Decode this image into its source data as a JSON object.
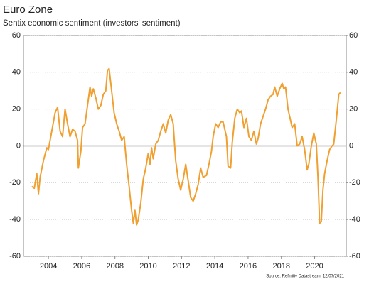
{
  "chart_data": {
    "type": "line",
    "title": "Euro Zone",
    "subtitle": "Sentix economic sentiment (investors' sentiment)",
    "source": "Source: Refinitiv Datastream, 12/07/2021",
    "x": [
      2003.0,
      2003.15,
      2003.3,
      2003.4,
      2003.5,
      2003.7,
      2003.9,
      2004.0,
      2004.2,
      2004.4,
      2004.55,
      2004.7,
      2004.85,
      2005.0,
      2005.15,
      2005.3,
      2005.45,
      2005.6,
      2005.75,
      2005.8,
      2005.95,
      2006.05,
      2006.2,
      2006.35,
      2006.5,
      2006.6,
      2006.7,
      2006.85,
      2007.0,
      2007.15,
      2007.3,
      2007.45,
      2007.55,
      2007.65,
      2007.8,
      2007.95,
      2008.1,
      2008.25,
      2008.4,
      2008.55,
      2008.7,
      2008.85,
      2009.0,
      2009.1,
      2009.2,
      2009.3,
      2009.4,
      2009.55,
      2009.7,
      2009.85,
      2010.0,
      2010.1,
      2010.2,
      2010.3,
      2010.45,
      2010.6,
      2010.75,
      2010.9,
      2011.05,
      2011.2,
      2011.35,
      2011.5,
      2011.65,
      2011.8,
      2011.95,
      2012.1,
      2012.25,
      2012.4,
      2012.55,
      2012.7,
      2012.85,
      2013.0,
      2013.15,
      2013.3,
      2013.5,
      2013.65,
      2013.8,
      2013.9,
      2014.05,
      2014.2,
      2014.35,
      2014.5,
      2014.7,
      2014.8,
      2014.95,
      2015.05,
      2015.2,
      2015.35,
      2015.5,
      2015.6,
      2015.75,
      2015.9,
      2016.05,
      2016.2,
      2016.35,
      2016.5,
      2016.6,
      2016.75,
      2016.9,
      2017.05,
      2017.2,
      2017.35,
      2017.5,
      2017.6,
      2017.75,
      2017.9,
      2018.05,
      2018.15,
      2018.25,
      2018.4,
      2018.55,
      2018.65,
      2018.8,
      2018.95,
      2019.1,
      2019.25,
      2019.4,
      2019.55,
      2019.65,
      2019.8,
      2019.95,
      2020.1,
      2020.2,
      2020.3,
      2020.4,
      2020.5,
      2020.6,
      2020.75,
      2020.9,
      2021.05,
      2021.15,
      2021.3,
      2021.45,
      2021.55
    ],
    "series": [
      {
        "name": "Sentix",
        "color": "#f0a030",
        "values": [
          -22,
          -23,
          -15,
          -26,
          -17,
          -8,
          -1,
          -2,
          8,
          18,
          21,
          8,
          5,
          20,
          12,
          5,
          9,
          8,
          3,
          -12,
          -3,
          10,
          12,
          22,
          32,
          27,
          31,
          26,
          20,
          22,
          28,
          30,
          41,
          42,
          30,
          18,
          12,
          8,
          3,
          5,
          -10,
          -22,
          -35,
          -42,
          -35,
          -43,
          -40,
          -31,
          -18,
          -12,
          -4,
          -10,
          -1,
          -7,
          1,
          3,
          8,
          12,
          7,
          14,
          17,
          12,
          -8,
          -18,
          -24,
          -18,
          -10,
          -19,
          -28,
          -30,
          -26,
          -21,
          -12,
          -17,
          -16,
          -10,
          -3,
          5,
          12,
          10,
          13,
          13,
          5,
          -11,
          -12,
          2,
          15,
          20,
          18,
          19,
          10,
          15,
          5,
          3,
          8,
          1,
          4,
          12,
          16,
          20,
          25,
          27,
          28,
          32,
          27,
          31,
          34,
          31,
          32,
          20,
          14,
          10,
          12,
          0,
          1,
          5,
          -2,
          -13,
          -10,
          0,
          7,
          1,
          -17,
          -42,
          -41,
          -24,
          -15,
          -8,
          -2,
          0,
          1,
          14,
          28,
          29
        ]
      }
    ],
    "xlim": [
      2002.5,
      2021.9
    ],
    "xticks": [
      2004,
      2006,
      2008,
      2010,
      2012,
      2014,
      2016,
      2018,
      2020
    ],
    "ylim": [
      -60,
      60
    ],
    "yticks": [
      -60,
      -40,
      -20,
      0,
      20,
      40,
      60
    ],
    "y2lim": [
      -60,
      60
    ],
    "y2ticks": [
      -60,
      -40,
      -20,
      0,
      20,
      40,
      60
    ],
    "grid": true
  }
}
